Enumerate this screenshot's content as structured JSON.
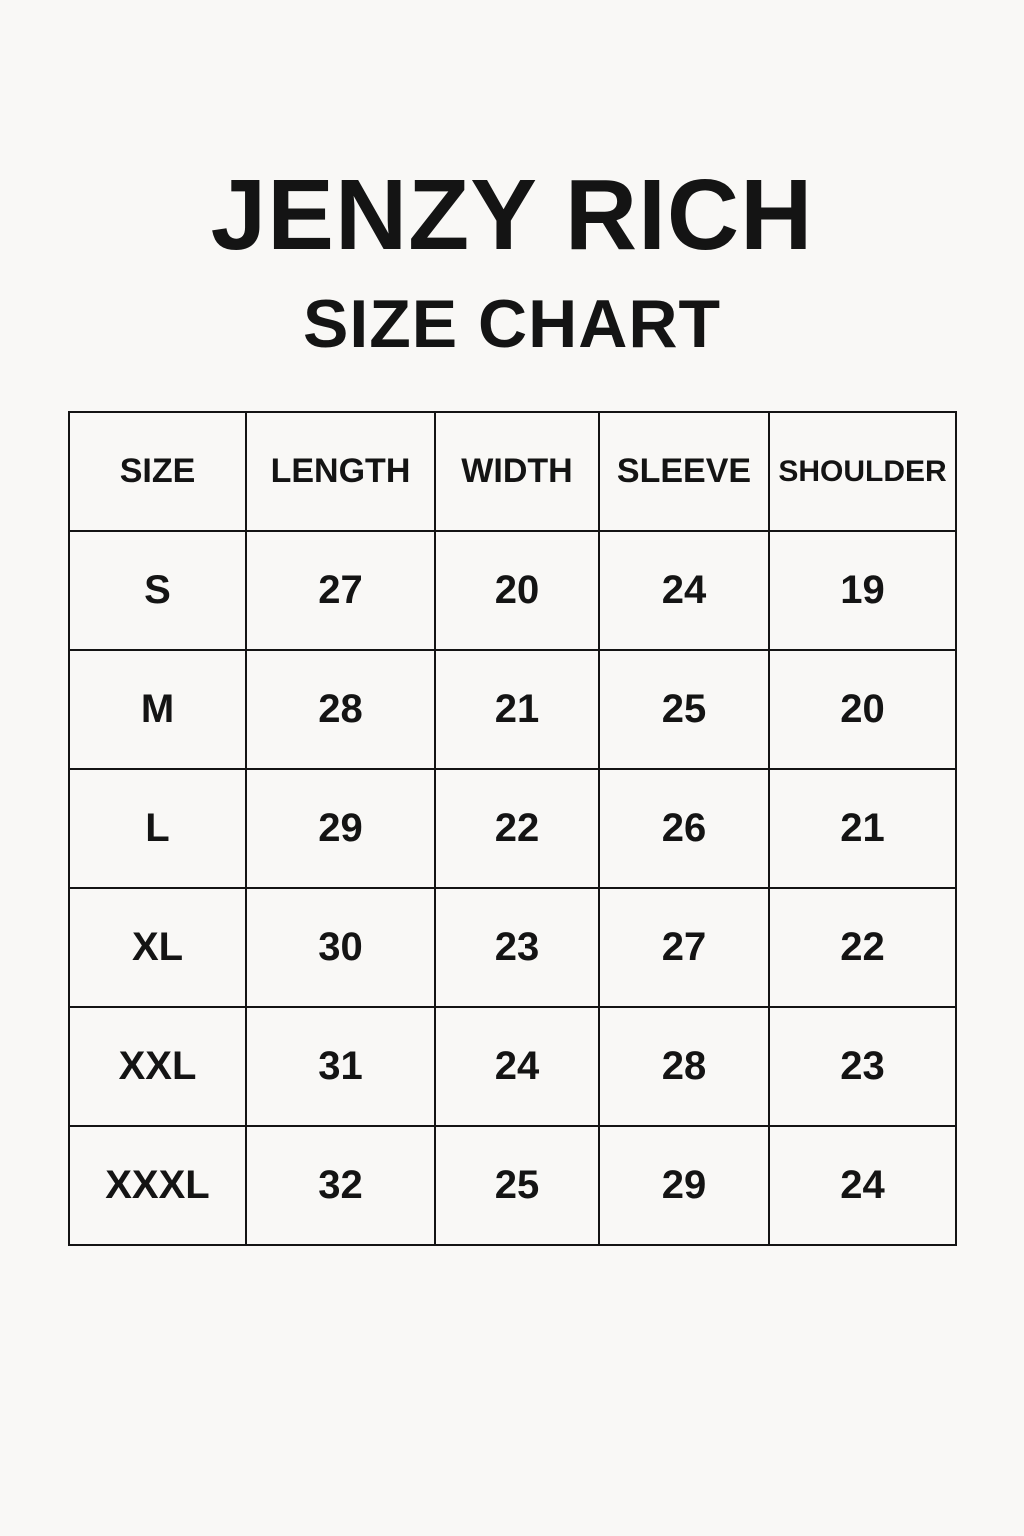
{
  "title": "JENZY RICH",
  "subtitle": "SIZE CHART",
  "table": {
    "headers": [
      "SIZE",
      "LENGTH",
      "WIDTH",
      "SLEEVE",
      "SHOULDER"
    ],
    "rows": [
      [
        "S",
        "27",
        "20",
        "24",
        "19"
      ],
      [
        "M",
        "28",
        "21",
        "25",
        "20"
      ],
      [
        "L",
        "29",
        "22",
        "26",
        "21"
      ],
      [
        "XL",
        "30",
        "23",
        "27",
        "22"
      ],
      [
        "XXL",
        "31",
        "24",
        "28",
        "23"
      ],
      [
        "XXXL",
        "32",
        "25",
        "29",
        "24"
      ]
    ]
  }
}
